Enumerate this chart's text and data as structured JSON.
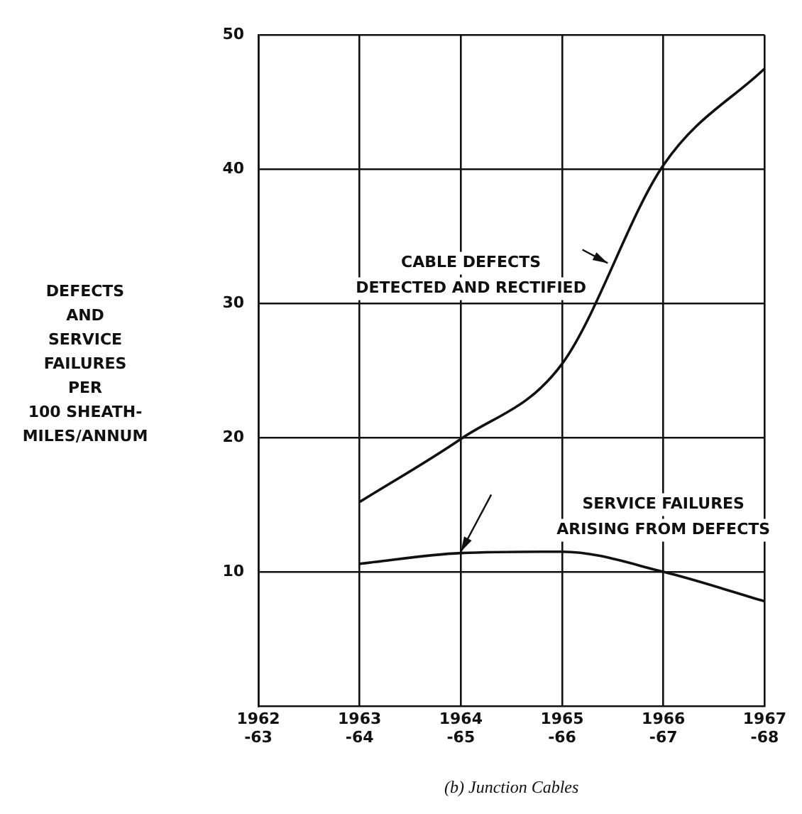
{
  "chart_data": {
    "type": "line",
    "ylabel": "DEFECTS\nAND\nSERVICE\nFAILURES\nPER\n100 SHEATH-\nMILES/ANNUM",
    "categories": [
      "1962\n-63",
      "1963\n-64",
      "1964\n-65",
      "1965\n-66",
      "1966\n-67",
      "1967\n-68"
    ],
    "ylim": [
      0,
      50
    ],
    "yticks": [
      10,
      20,
      30,
      40,
      50
    ],
    "grid": true,
    "legend": false,
    "marker": "none",
    "line_style": "solid",
    "series": [
      {
        "color": "#111111",
        "values": [
          null,
          15.2,
          19.9,
          25.5,
          40.3,
          47.5
        ]
      },
      {
        "color": "#111111",
        "values": [
          null,
          10.6,
          11.4,
          11.5,
          10,
          7.8
        ]
      }
    ],
    "annotations": [
      "CABLE DEFECTS\nDETECTED AND RECTIFIED",
      "SERVICE FAILURES\nARISING FROM DEFECTS",
      "(b) Junction Cables"
    ]
  }
}
